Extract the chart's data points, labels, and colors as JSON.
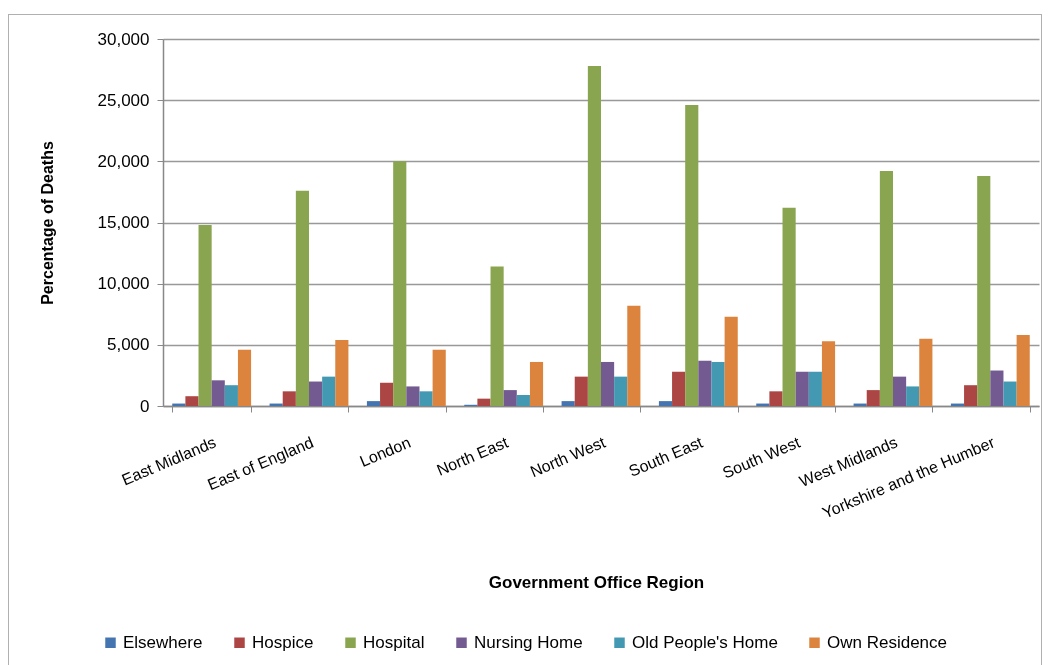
{
  "chart_data": {
    "type": "bar",
    "xlabel": "Government Office Region",
    "ylabel": "Percentage of Deaths",
    "categories": [
      "East Midlands",
      "East of England",
      "London",
      "North East",
      "North West",
      "South East",
      "South West",
      "West Midlands",
      "Yorkshire and the Humber"
    ],
    "series": [
      {
        "name": "Elsewhere",
        "color": "#4575b0",
        "values": [
          200,
          200,
          400,
          100,
          400,
          400,
          200,
          200,
          200
        ]
      },
      {
        "name": "Hospice",
        "color": "#ac4644",
        "values": [
          800,
          1200,
          1900,
          600,
          2400,
          2800,
          1200,
          1300,
          1700
        ]
      },
      {
        "name": "Hospital",
        "color": "#8aa54f",
        "values": [
          14800,
          17600,
          20000,
          11400,
          27800,
          24600,
          16200,
          19200,
          18800
        ]
      },
      {
        "name": "Nursing Home",
        "color": "#735a91",
        "values": [
          2100,
          2000,
          1600,
          1300,
          3600,
          3700,
          2800,
          2400,
          2900
        ]
      },
      {
        "name": "Old People's Home",
        "color": "#4399b1",
        "values": [
          1700,
          2400,
          1200,
          900,
          2400,
          3600,
          2800,
          1600,
          2000
        ]
      },
      {
        "name": "Own Residence",
        "color": "#dc833d",
        "values": [
          4600,
          5400,
          4600,
          3600,
          8200,
          7300,
          5300,
          5500,
          5800
        ]
      }
    ],
    "ylim": [
      0,
      30000
    ],
    "yticks": [
      0,
      {
        "value": 5000,
        "label": "5,000"
      },
      {
        "value": 10000,
        "label": "10,000"
      },
      {
        "value": 15000,
        "label": "15,000"
      },
      {
        "value": 20000,
        "label": "20,000"
      },
      {
        "value": 25000,
        "label": "25,000"
      },
      {
        "value": 30000,
        "label": "30,000"
      }
    ],
    "grid": "y",
    "legend": "bottom"
  }
}
